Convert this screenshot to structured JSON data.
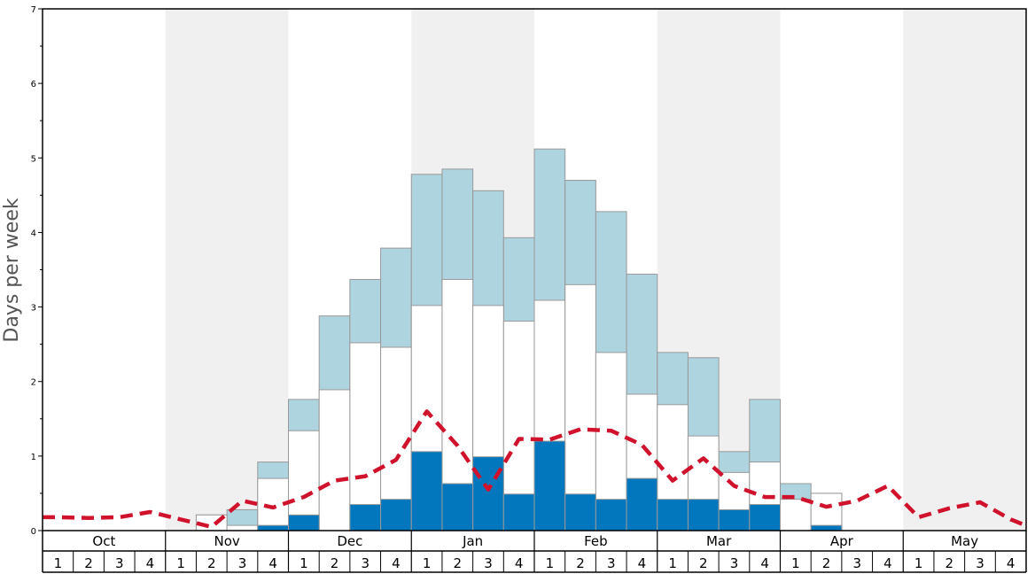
{
  "chart_data": {
    "type": "bar",
    "ylabel": "Days per week",
    "ylim": [
      0,
      7
    ],
    "y_ticks": [
      "0",
      "1",
      "2",
      "3",
      "4",
      "5",
      "6",
      "7"
    ],
    "months": [
      "Oct",
      "Nov",
      "Dec",
      "Jan",
      "Feb",
      "Mar",
      "Apr",
      "May"
    ],
    "week_labels": [
      "1",
      "2",
      "3",
      "4"
    ],
    "shaded_months": [
      "Nov",
      "Jan",
      "Mar",
      "May"
    ],
    "colors": {
      "light": "#aed4e0",
      "mid": "#ffffff",
      "dark": "#0277bd",
      "line": "#d0122c",
      "shade": "#f0f0f0",
      "bar_border": "#999999"
    },
    "series": [
      {
        "values": [
          0,
          0,
          0,
          0,
          0,
          0.21,
          0.28,
          0.92,
          1.76,
          2.88,
          3.37,
          3.79,
          4.78,
          4.85,
          4.56,
          3.93,
          5.12,
          4.7,
          4.28,
          3.44,
          2.39,
          2.32,
          1.06,
          1.76,
          0.63,
          0.5,
          0,
          0,
          0,
          0,
          0,
          0
        ]
      },
      {
        "values": [
          0,
          0,
          0,
          0,
          0,
          0.21,
          0.07,
          0.7,
          1.34,
          1.89,
          2.52,
          2.46,
          3.02,
          3.37,
          3.02,
          2.81,
          3.09,
          3.3,
          2.39,
          1.83,
          1.69,
          1.27,
          0.78,
          0.92,
          0.42,
          0.5,
          0,
          0,
          0,
          0,
          0,
          0
        ]
      },
      {
        "values": [
          0,
          0,
          0,
          0,
          0,
          0,
          0,
          0.07,
          0.21,
          0,
          0.35,
          0.42,
          1.06,
          0.63,
          0.99,
          0.49,
          1.2,
          0.49,
          0.42,
          0.7,
          0.42,
          0.42,
          0.28,
          0.35,
          0,
          0.07,
          0,
          0,
          0,
          0,
          0,
          0
        ]
      },
      {
        "values": [
          0.18,
          0.17,
          0.18,
          0.25,
          0.15,
          0.05,
          0.4,
          0.31,
          0.45,
          0.67,
          0.73,
          0.95,
          1.6,
          1.14,
          0.55,
          1.23,
          1.22,
          1.36,
          1.34,
          1.15,
          0.67,
          0.97,
          0.6,
          0.45,
          0.45,
          0.32,
          0.4,
          0.6,
          0.18,
          0.3,
          0.38,
          0.15
        ]
      }
    ]
  }
}
